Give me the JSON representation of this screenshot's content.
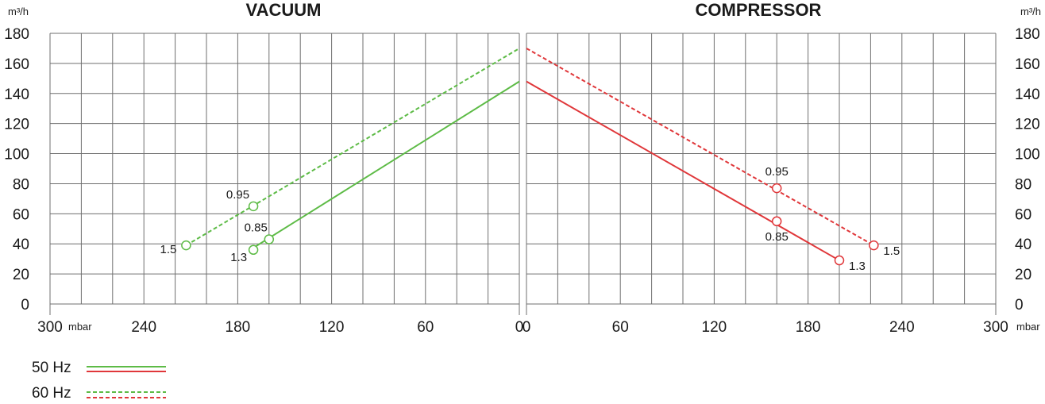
{
  "chart_data": [
    {
      "type": "line",
      "title": "VACUUM",
      "ylabel": "m³/h",
      "xlabel": "mbar",
      "x_reversed": true,
      "xlim": [
        0,
        300
      ],
      "ylim": [
        0,
        180
      ],
      "x_ticks": [
        300,
        240,
        180,
        120,
        60,
        0
      ],
      "y_ticks": [
        0,
        20,
        40,
        60,
        80,
        100,
        120,
        140,
        160,
        180
      ],
      "grid": true,
      "series": [
        {
          "name": "50 Hz",
          "color": "#5dbb46",
          "dash": "solid",
          "x": [
            169,
            0
          ],
          "y": [
            38,
            148
          ],
          "markers": [
            {
              "x": 160,
              "y": 43,
              "label": "0.85"
            },
            {
              "x": 170,
              "y": 36,
              "label": "1.3"
            }
          ]
        },
        {
          "name": "60 Hz",
          "color": "#5dbb46",
          "dash": "dashed",
          "x": [
            213,
            0
          ],
          "y": [
            39,
            170
          ],
          "markers": [
            {
              "x": 170,
              "y": 65,
              "label": "0.95"
            },
            {
              "x": 213,
              "y": 39,
              "label": "1.5"
            }
          ]
        }
      ]
    },
    {
      "type": "line",
      "title": "COMPRESSOR",
      "ylabel": "m³/h",
      "xlabel": "mbar",
      "x_reversed": false,
      "xlim": [
        0,
        300
      ],
      "ylim": [
        0,
        180
      ],
      "x_ticks": [
        0,
        60,
        120,
        180,
        240,
        300
      ],
      "y_ticks": [
        0,
        20,
        40,
        60,
        80,
        100,
        120,
        140,
        160,
        180
      ],
      "grid": true,
      "series": [
        {
          "name": "50 Hz",
          "color": "#e0373a",
          "dash": "solid",
          "x": [
            0,
            200
          ],
          "y": [
            148,
            29
          ],
          "markers": [
            {
              "x": 160,
              "y": 55,
              "label": "0.85"
            },
            {
              "x": 200,
              "y": 29,
              "label": "1.3"
            }
          ]
        },
        {
          "name": "60 Hz",
          "color": "#e0373a",
          "dash": "dashed",
          "x": [
            0,
            222
          ],
          "y": [
            170,
            39
          ],
          "markers": [
            {
              "x": 160,
              "y": 77,
              "label": "0.95"
            },
            {
              "x": 222,
              "y": 39,
              "label": "1.5"
            }
          ]
        }
      ]
    }
  ],
  "legend": [
    {
      "label": "50 Hz",
      "dash": "solid",
      "colors": [
        "#5dbb46",
        "#e0373a"
      ]
    },
    {
      "label": "60 Hz",
      "dash": "dashed",
      "colors": [
        "#5dbb46",
        "#e0373a"
      ]
    }
  ]
}
